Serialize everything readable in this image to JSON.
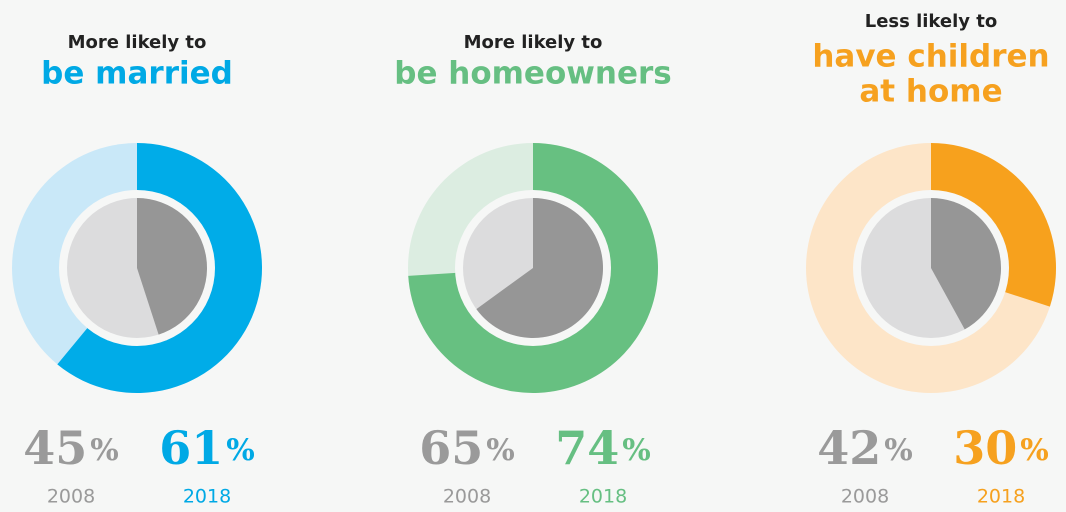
{
  "chart_data": [
    {
      "type": "donut",
      "subtitle": "More likely to",
      "title_lines": [
        "be married"
      ],
      "title_color": "#00a9e5",
      "series": [
        {
          "name": "2008",
          "values": [
            45
          ],
          "value_labels": [
            "45%"
          ],
          "color": "#969696",
          "track_color": "#dcdcdd",
          "label_color": "#9a9a9a"
        },
        {
          "name": "2018",
          "values": [
            61
          ],
          "value_labels": [
            "61%"
          ],
          "color": "#00ace8",
          "track_color": "#c9e8f8",
          "label_color": "#00a9e5"
        }
      ]
    },
    {
      "type": "donut",
      "subtitle": "More likely to",
      "title_lines": [
        "be homeowners"
      ],
      "title_color": "#66bf82",
      "series": [
        {
          "name": "2008",
          "values": [
            65
          ],
          "value_labels": [
            "65%"
          ],
          "color": "#969696",
          "track_color": "#dcdcdd",
          "label_color": "#9a9a9a"
        },
        {
          "name": "2018",
          "values": [
            74
          ],
          "value_labels": [
            "74%"
          ],
          "color": "#67c081",
          "track_color": "#dcede1",
          "label_color": "#66bf82"
        }
      ]
    },
    {
      "type": "donut",
      "subtitle": "Less likely to",
      "title_lines": [
        "have children",
        "at home"
      ],
      "title_color": "#f6a11f",
      "series": [
        {
          "name": "2008",
          "values": [
            42
          ],
          "value_labels": [
            "42%"
          ],
          "color": "#969696",
          "track_color": "#dcdcdd",
          "label_color": "#9a9a9a"
        },
        {
          "name": "2018",
          "values": [
            30
          ],
          "value_labels": [
            "30%"
          ],
          "color": "#f7a11d",
          "track_color": "#fde5c8",
          "label_color": "#f6a11f"
        }
      ]
    }
  ]
}
